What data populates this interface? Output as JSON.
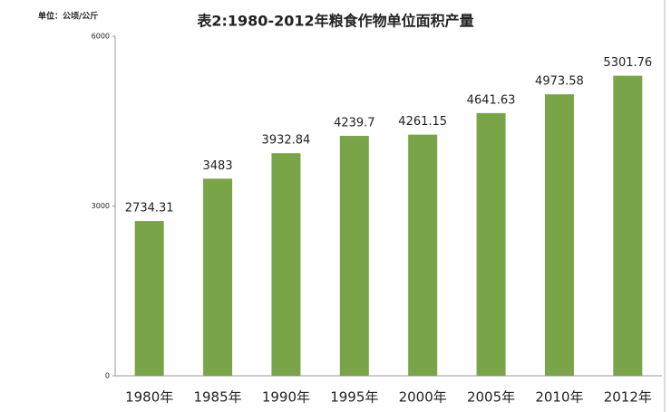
{
  "chart_data": {
    "type": "bar",
    "title": "表2:1980-2012年粮食作物单位面积产量",
    "unit_label": "单位：公顷/公斤",
    "categories": [
      "1980年",
      "1985年",
      "1990年",
      "1995年",
      "2000年",
      "2005年",
      "2010年",
      "2012年"
    ],
    "values": [
      2734.31,
      3483,
      3932.84,
      4239.7,
      4261.15,
      4641.63,
      4973.58,
      5301.76
    ],
    "color": "#7aa448",
    "ylim": [
      0,
      6000
    ],
    "yticks": [
      0,
      3000,
      6000
    ],
    "grid": false,
    "data_labels": true
  }
}
